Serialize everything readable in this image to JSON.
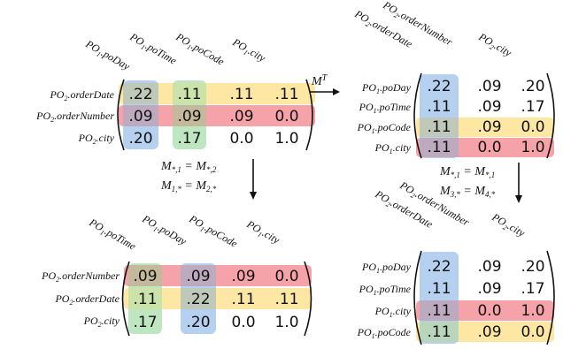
{
  "colors": {
    "yellow": "#fde7a3",
    "red": "#f5a3a8",
    "green": "#b3e3b6",
    "blue": "#a9c8ec",
    "text": "#111111"
  },
  "matrices": {
    "m_top_left": {
      "col_labels": [
        "PO1.poDay",
        "PO1.poTime",
        "PO1.poCode",
        "PO1.city"
      ],
      "row_labels": [
        "PO2.orderDate",
        "PO2.orderNumber",
        "PO2.city"
      ],
      "cells": [
        [
          ".22",
          ".11",
          ".11",
          ".11"
        ],
        [
          ".09",
          ".09",
          ".09",
          "0.0"
        ],
        [
          ".20",
          ".17",
          "0.0",
          "1.0"
        ]
      ]
    },
    "m_top_right": {
      "col_labels": [
        "PO2.orderDate",
        "PO2.orderNumber",
        "PO2.city"
      ],
      "row_labels": [
        "PO1.poDay",
        "PO1.poTime",
        "PO1.poCode",
        "PO1.city"
      ],
      "cells": [
        [
          ".22",
          ".09",
          ".20"
        ],
        [
          ".11",
          ".09",
          ".17"
        ],
        [
          ".11",
          ".09",
          "0.0"
        ],
        [
          ".11",
          "0.0",
          "1.0"
        ]
      ]
    },
    "m_bottom_left": {
      "col_labels": [
        "PO1.poTime",
        "PO1.poDay",
        "PO1.poCode",
        "PO1.city"
      ],
      "row_labels": [
        "PO2.orderNumber",
        "PO2.orderDate",
        "PO2.city"
      ],
      "cells": [
        [
          ".09",
          ".09",
          ".09",
          "0.0"
        ],
        [
          ".11",
          ".22",
          ".11",
          ".11"
        ],
        [
          ".17",
          ".20",
          "0.0",
          "1.0"
        ]
      ]
    },
    "m_bottom_right": {
      "col_labels": [
        "PO2.orderDate",
        "PO2.orderNumber",
        "PO2.city"
      ],
      "row_labels": [
        "PO1.poDay",
        "PO1.poTime",
        "PO1.city",
        "PO1.poCode"
      ],
      "cells": [
        [
          ".22",
          ".09",
          ".20"
        ],
        [
          ".11",
          ".09",
          ".17"
        ],
        [
          ".11",
          "0.0",
          "1.0"
        ],
        [
          ".11",
          ".09",
          "0.0"
        ]
      ]
    }
  },
  "operations": {
    "transpose": "M^T",
    "left_swap_line1": "M*,1 = M*,2",
    "left_swap_line2": "M1,* = M2,*",
    "right_swap_line1": "M*,1 = M*,1",
    "right_swap_line2": "M3,* = M4,*"
  }
}
